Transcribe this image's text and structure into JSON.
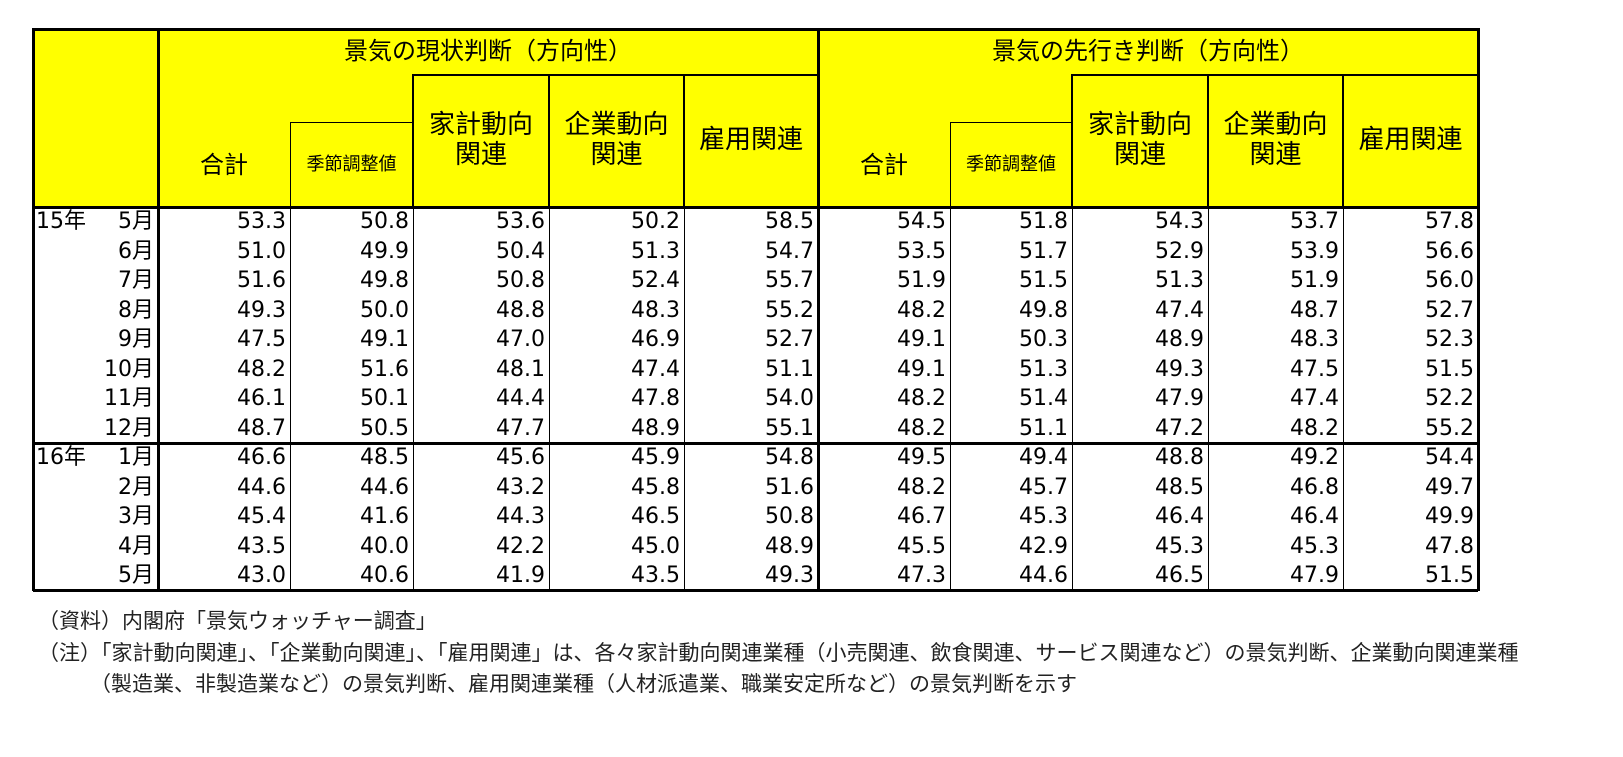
{
  "table": {
    "groups": [
      {
        "title": "景気の現状判断（方向性）",
        "columns": [
          "合計",
          "季節調整値",
          "家計動向関連",
          "企業動向関連",
          "雇用関連"
        ]
      },
      {
        "title": "景気の先行き判断（方向性）",
        "columns": [
          "合計",
          "季節調整値",
          "家計動向関連",
          "企業動向関連",
          "雇用関連"
        ]
      }
    ],
    "rows": [
      {
        "year": "15年",
        "month": "5月",
        "values": [
          "53.3",
          "50.8",
          "53.6",
          "50.2",
          "58.5",
          "54.5",
          "51.8",
          "54.3",
          "53.7",
          "57.8"
        ]
      },
      {
        "month": "6月",
        "values": [
          "51.0",
          "49.9",
          "50.4",
          "51.3",
          "54.7",
          "53.5",
          "51.7",
          "52.9",
          "53.9",
          "56.6"
        ]
      },
      {
        "month": "7月",
        "values": [
          "51.6",
          "49.8",
          "50.8",
          "52.4",
          "55.7",
          "51.9",
          "51.5",
          "51.3",
          "51.9",
          "56.0"
        ]
      },
      {
        "month": "8月",
        "values": [
          "49.3",
          "50.0",
          "48.8",
          "48.3",
          "55.2",
          "48.2",
          "49.8",
          "47.4",
          "48.7",
          "52.7"
        ]
      },
      {
        "month": "9月",
        "values": [
          "47.5",
          "49.1",
          "47.0",
          "46.9",
          "52.7",
          "49.1",
          "50.3",
          "48.9",
          "48.3",
          "52.3"
        ]
      },
      {
        "month": "10月",
        "values": [
          "48.2",
          "51.6",
          "48.1",
          "47.4",
          "51.1",
          "49.1",
          "51.3",
          "49.3",
          "47.5",
          "51.5"
        ]
      },
      {
        "month": "11月",
        "values": [
          "46.1",
          "50.1",
          "44.4",
          "47.8",
          "54.0",
          "48.2",
          "51.4",
          "47.9",
          "47.4",
          "52.2"
        ]
      },
      {
        "month": "12月",
        "values": [
          "48.7",
          "50.5",
          "47.7",
          "48.9",
          "55.1",
          "48.2",
          "51.1",
          "47.2",
          "48.2",
          "55.2"
        ]
      },
      {
        "year": "16年",
        "month": "1月",
        "values": [
          "46.6",
          "48.5",
          "45.6",
          "45.9",
          "54.8",
          "49.5",
          "49.4",
          "48.8",
          "49.2",
          "54.4"
        ]
      },
      {
        "month": "2月",
        "values": [
          "44.6",
          "44.6",
          "43.2",
          "45.8",
          "51.6",
          "48.2",
          "45.7",
          "48.5",
          "46.8",
          "49.7"
        ]
      },
      {
        "month": "3月",
        "values": [
          "45.4",
          "41.6",
          "44.3",
          "46.5",
          "50.8",
          "46.7",
          "45.3",
          "46.4",
          "46.4",
          "49.9"
        ]
      },
      {
        "month": "4月",
        "values": [
          "43.5",
          "40.0",
          "42.2",
          "45.0",
          "48.9",
          "45.5",
          "42.9",
          "45.3",
          "45.3",
          "47.8"
        ]
      },
      {
        "month": "5月",
        "values": [
          "43.0",
          "40.6",
          "41.9",
          "43.5",
          "49.3",
          "47.3",
          "44.6",
          "46.5",
          "47.9",
          "51.5"
        ]
      }
    ]
  },
  "source": "（資料）内閣府「景気ウォッチャー調査」",
  "note": "（注）「家計動向関連」、「企業動向関連」、「雇用関連」は、各々家計動向関連業種（小売関連、飲食関連、サービス関連など）の景気判断、企業動向関連業種（製造業、非製造業など）の景気判断、雇用関連業種（人材派遣業、職業安定所など）の景気判断を示す"
}
